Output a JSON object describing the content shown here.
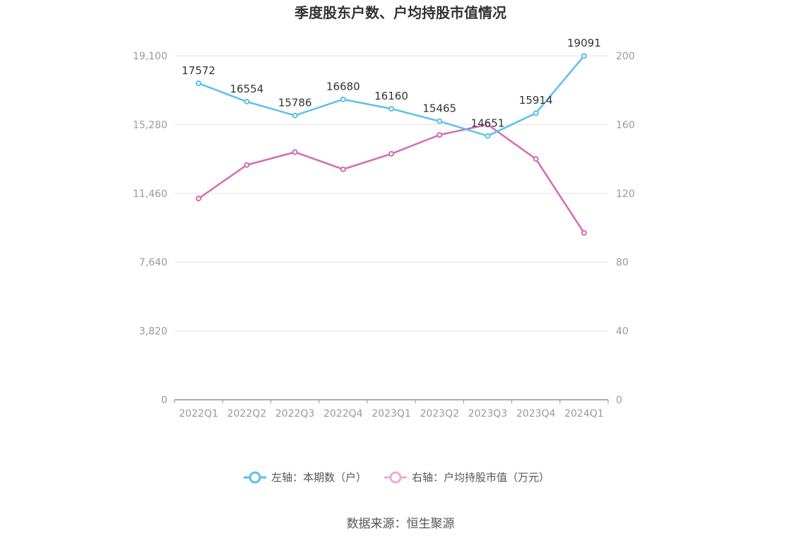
{
  "chart_data": {
    "type": "line",
    "title": "季度股东户数、户均持股市值情况",
    "categories": [
      "2022Q1",
      "2022Q2",
      "2022Q3",
      "2022Q4",
      "2023Q1",
      "2023Q2",
      "2023Q3",
      "2023Q4",
      "2024Q1"
    ],
    "left_axis": {
      "ticks": [
        "0",
        "3,820",
        "7,640",
        "11,460",
        "15,280",
        "19,100"
      ],
      "range": [
        0,
        19100
      ]
    },
    "right_axis": {
      "ticks": [
        "0",
        "40",
        "80",
        "120",
        "160",
        "200"
      ],
      "range": [
        0,
        200
      ]
    },
    "series": [
      {
        "name": "左轴：本期数（户）",
        "axis": "left",
        "color": "#5bc0eb",
        "values": [
          17572,
          16554,
          15786,
          16680,
          16160,
          15465,
          14651,
          15914,
          19091
        ],
        "labels": [
          "17572",
          "16554",
          "15786",
          "16680",
          "16160",
          "15465",
          "14651",
          "15914",
          "19091"
        ]
      },
      {
        "name": "右轴：户均持股市值（万元）",
        "axis": "right",
        "color": "#d46bb4",
        "values": [
          117,
          136.5,
          144,
          134,
          143,
          154,
          160,
          140,
          97
        ]
      }
    ],
    "grid": true,
    "legend": "bottom-center"
  },
  "source": "数据来源：恒生聚源",
  "colors": {
    "series1": "#5bc0eb",
    "series2": "#d46bb4",
    "grid": "#e3e6f0",
    "axis": "#8e8ea3"
  }
}
